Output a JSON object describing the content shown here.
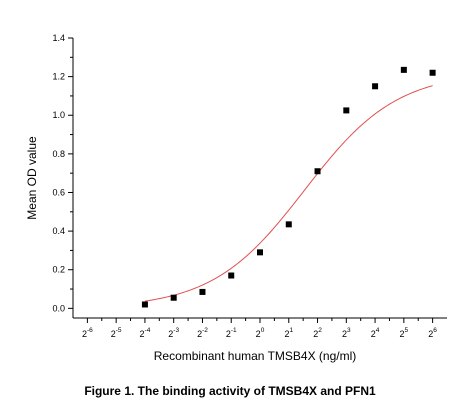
{
  "caption": "Figure 1. The binding activity of TMSB4X and PFN1",
  "chart_data": {
    "type": "scatter",
    "title": "",
    "xlabel": "Recombinant human TMSB4X (ng/ml)",
    "ylabel": "Mean OD value",
    "x_scale": "log2",
    "x_tick_labels": [
      {
        "base": "2",
        "exp": "-6"
      },
      {
        "base": "2",
        "exp": "-5"
      },
      {
        "base": "2",
        "exp": "-4"
      },
      {
        "base": "2",
        "exp": "-3"
      },
      {
        "base": "2",
        "exp": "-2"
      },
      {
        "base": "2",
        "exp": "-1"
      },
      {
        "base": "2",
        "exp": "0"
      },
      {
        "base": "2",
        "exp": "1"
      },
      {
        "base": "2",
        "exp": "2"
      },
      {
        "base": "2",
        "exp": "3"
      },
      {
        "base": "2",
        "exp": "4"
      },
      {
        "base": "2",
        "exp": "5"
      },
      {
        "base": "2",
        "exp": "6"
      }
    ],
    "y_ticks": [
      "0.0",
      "0.2",
      "0.4",
      "0.6",
      "0.8",
      "1.0",
      "1.2",
      "1.4"
    ],
    "ylim": [
      -0.05,
      1.4
    ],
    "xlim_exponent": [
      -6.5,
      6.5
    ],
    "marker_color": "#000000",
    "fit_color": "#e05050",
    "series": [
      {
        "marker": "square",
        "x_exponent": [
          -4,
          -3,
          -2,
          -1,
          0,
          1,
          2,
          3,
          4,
          5,
          6
        ],
        "values": [
          0.02,
          0.055,
          0.085,
          0.17,
          0.29,
          0.435,
          0.71,
          1.025,
          1.15,
          1.235,
          1.22
        ]
      }
    ],
    "fit_curve": {
      "type": "logistic",
      "bottom": 0.0,
      "top": 1.225,
      "center_exponent": 1.55,
      "hill": 0.9
    }
  }
}
